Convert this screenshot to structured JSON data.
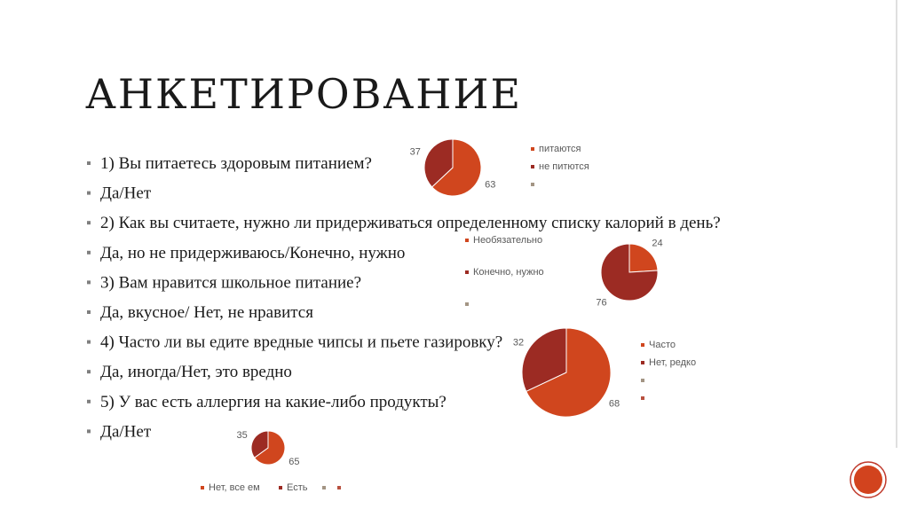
{
  "title": "АНКЕТИРОВАНИЕ",
  "bullets": [
    "1) Вы питаетесь здоровым питанием?",
    "Да/Нет",
    "2) Как вы считаете, нужно ли придерживаться определенному списку калорий в день?",
    "Да, но не придерживаюсь/Конечно, нужно",
    "3) Вам нравится школьное питание?",
    "Да, вкусное/ Нет, не нравится",
    "4) Часто ли вы едите вредные чипсы и пьете газировку?",
    "Да, иногда/Нет, это вредно",
    "5) У вас есть аллергия на какие-либо продукты?",
    "Да/Нет"
  ],
  "chart_data": [
    {
      "type": "pie",
      "categories": [
        "питаются",
        "не питются",
        null
      ],
      "values": [
        63,
        37,
        null
      ],
      "colors": [
        "#d0461e",
        "#9c2b23",
        "#a39584"
      ]
    },
    {
      "type": "pie",
      "categories": [
        "Необязательно",
        "Конечно, нужно",
        null
      ],
      "values": [
        24,
        76,
        null
      ],
      "colors": [
        "#d0461e",
        "#9c2b23",
        "#a39584"
      ]
    },
    {
      "type": "pie",
      "categories": [
        "Часто",
        "Нет, редко",
        null,
        null
      ],
      "values": [
        68,
        32,
        null,
        null
      ],
      "colors": [
        "#d0461e",
        "#9c2b23",
        "#a39584",
        "#b8503f"
      ]
    },
    {
      "type": "pie",
      "categories": [
        "Нет, все ем",
        "Есть",
        null,
        null
      ],
      "values": [
        65,
        35,
        null,
        null
      ],
      "colors": [
        "#d0461e",
        "#9c2b23",
        "#a39584",
        "#b8503f"
      ]
    }
  ]
}
